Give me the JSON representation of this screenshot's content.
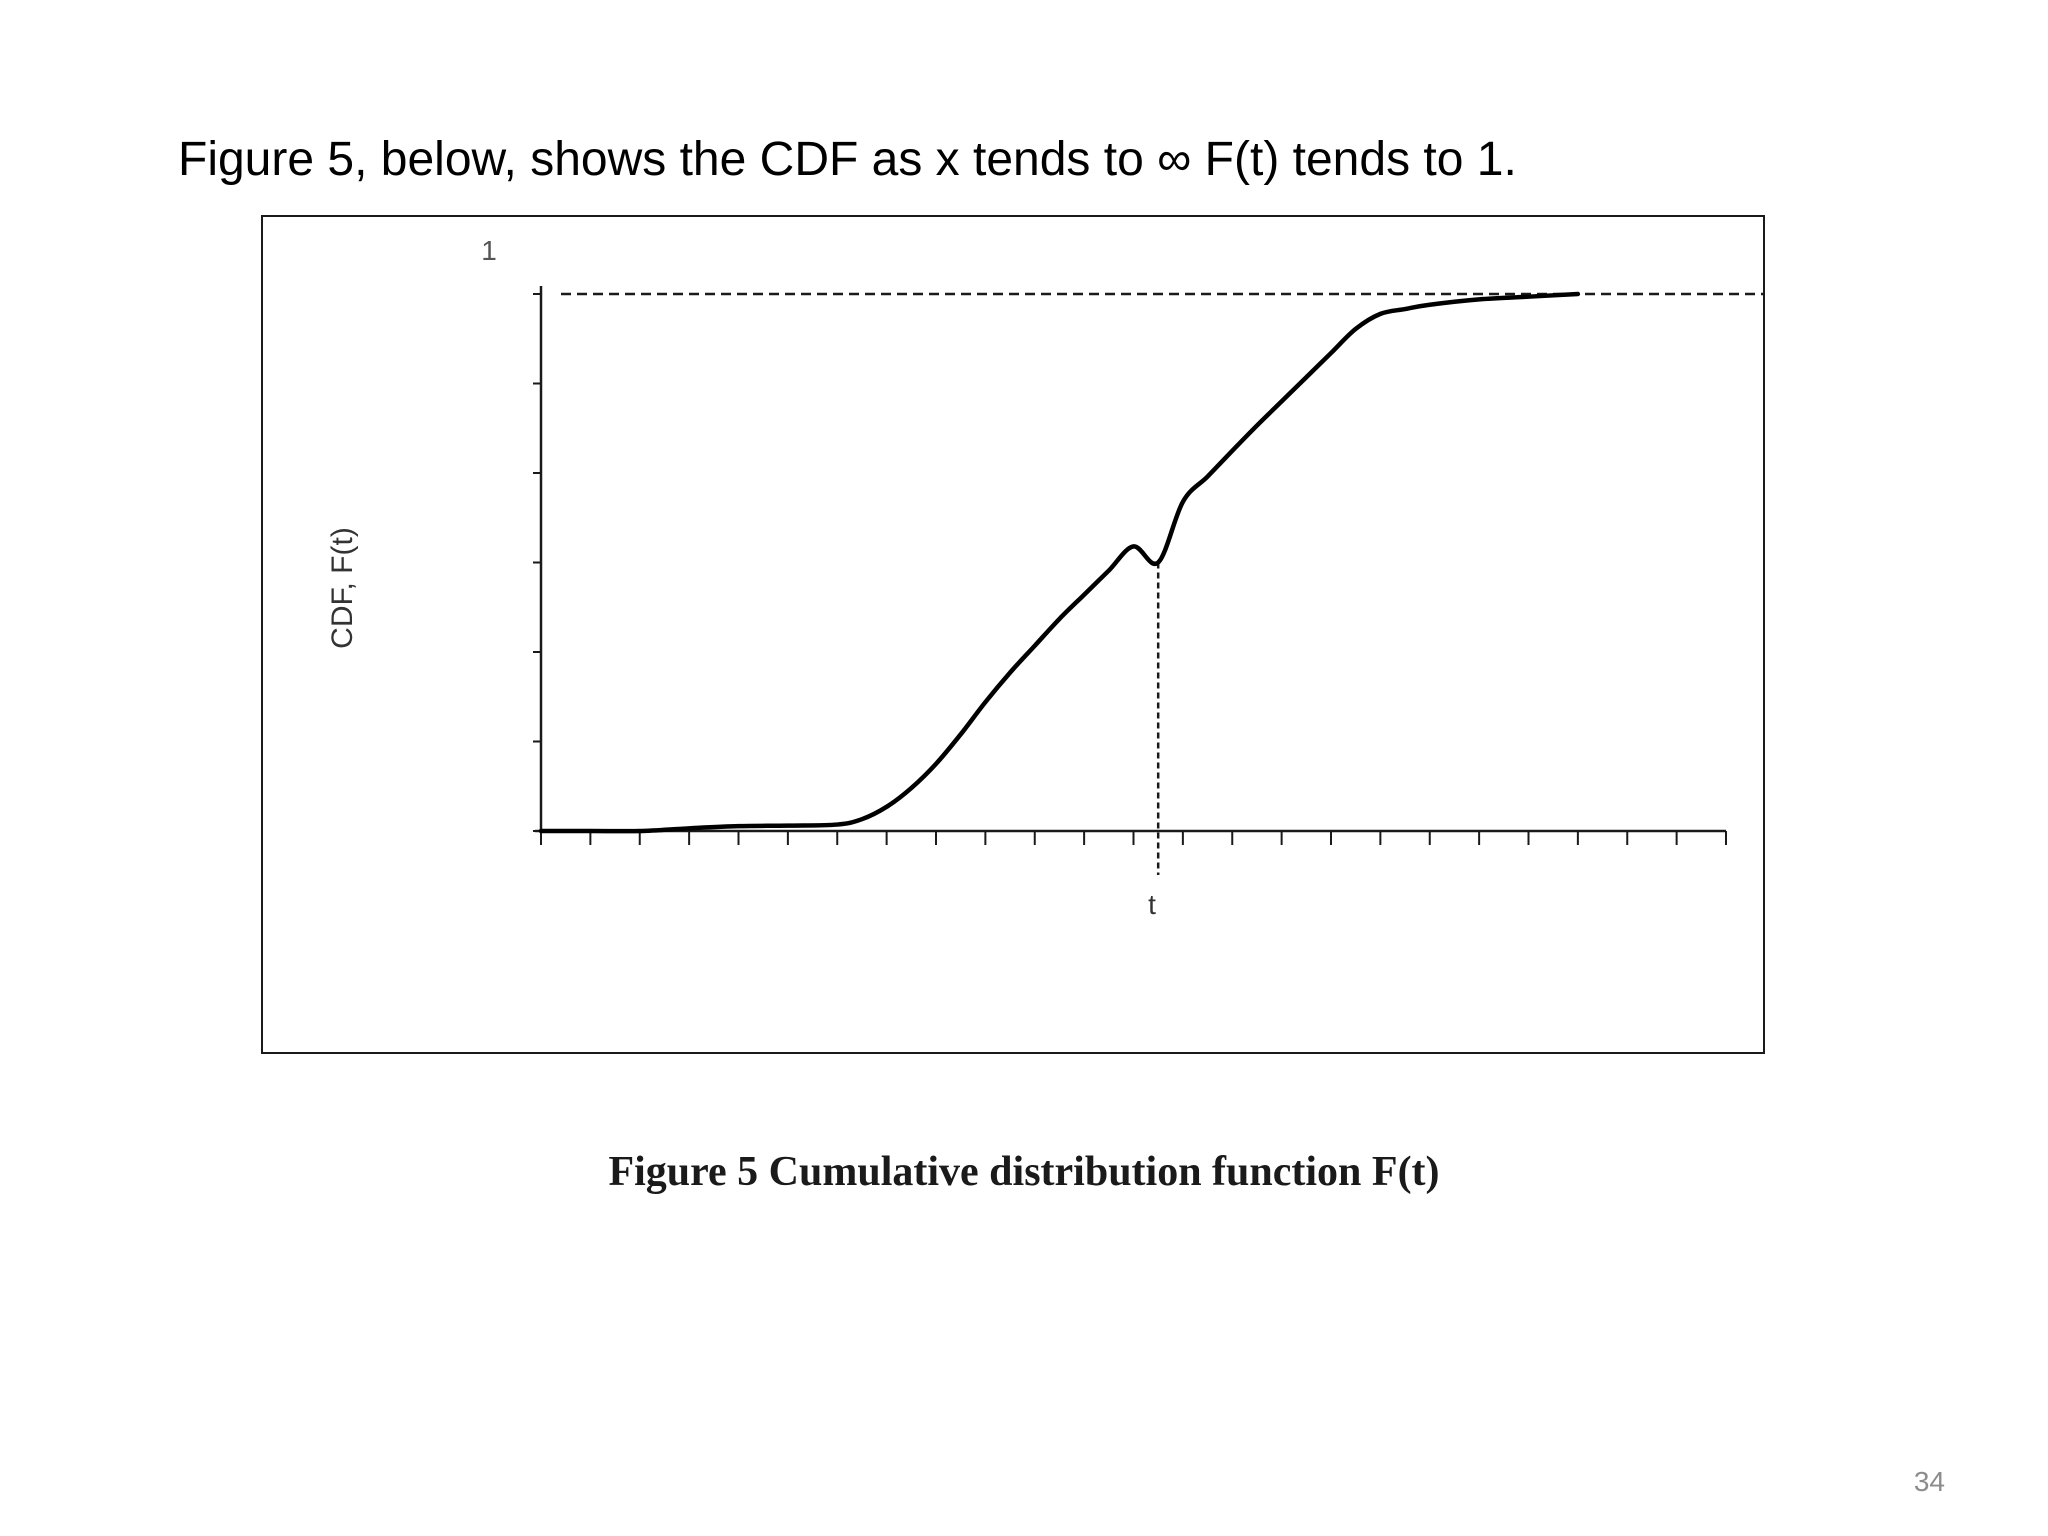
{
  "slide": {
    "title": "Figure 5, below, shows the CDF as x tends to ∞ F(t) tends to 1.",
    "caption": "Figure 5 Cumulative distribution function F(t)",
    "page_number": "34"
  },
  "chart_data": {
    "type": "line",
    "ylabel": "CDF, F(t)",
    "y_top_label": "1",
    "x_marker_label": "t",
    "xlim": [
      0,
      24
    ],
    "ylim": [
      0,
      1
    ],
    "x_tick_count": 25,
    "y_tick_count": 7,
    "x_tick_labels": [],
    "reference_lines": {
      "upper_asymptote": 1.0,
      "marker_x": 12.5,
      "marker_y": 0.5
    },
    "series": [
      {
        "x": [
          0,
          1,
          2,
          3,
          4,
          5,
          6,
          6.5,
          7,
          7.5,
          8,
          8.5,
          9,
          9.5,
          10,
          10.5,
          11,
          11.5,
          12,
          12.5,
          13,
          13.5,
          14,
          14.5,
          15,
          15.5,
          16,
          16.5,
          17,
          17.5,
          18,
          19,
          20,
          21
        ],
        "y": [
          0,
          0,
          0,
          0.005,
          0.009,
          0.01,
          0.012,
          0.022,
          0.045,
          0.08,
          0.125,
          0.18,
          0.24,
          0.295,
          0.345,
          0.395,
          0.44,
          0.485,
          0.53,
          0.5,
          0.613,
          0.66,
          0.708,
          0.755,
          0.8,
          0.845,
          0.89,
          0.935,
          0.963,
          0.972,
          0.98,
          0.99,
          0.995,
          1.0
        ]
      }
    ],
    "line_color": "#000000",
    "frame_color": "#1a1a1a"
  }
}
